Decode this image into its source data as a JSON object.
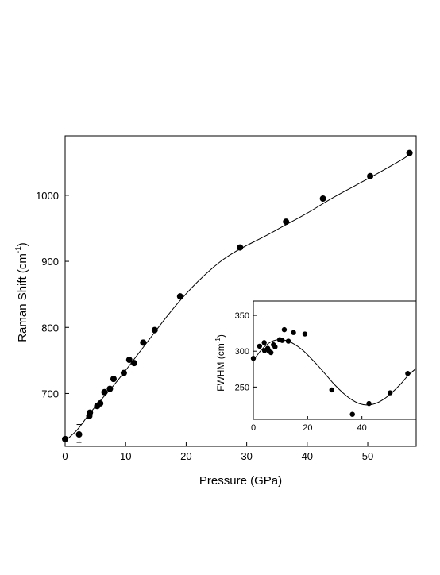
{
  "chart_data": [
    {
      "type": "scatter",
      "title": "",
      "xlabel": "Pressure (GPa)",
      "ylabel": "Raman Shift (cm",
      "ylabel_sup": "-1",
      "ylabel_close": ")",
      "xlim": [
        0,
        58
      ],
      "ylim": [
        620,
        1090
      ],
      "xticks": [
        0,
        10,
        20,
        30,
        40,
        50
      ],
      "yticks": [
        700,
        800,
        900,
        1000
      ],
      "xtick_labels": [
        "0",
        "10",
        "20",
        "30",
        "40",
        "50"
      ],
      "ytick_labels": [
        "700",
        "800",
        "900",
        "1000"
      ],
      "grid": false,
      "series": [
        {
          "x": [
            0,
            2.3,
            4.0,
            4.1,
            5.3,
            5.8,
            6.5,
            7.4,
            8.0,
            9.7,
            10.6,
            11.4,
            12.9,
            14.8,
            19.0,
            28.9,
            36.5,
            42.6,
            50.4,
            56.9
          ],
          "y": [
            631,
            638,
            666,
            671,
            681,
            685,
            702,
            707,
            722,
            731,
            751,
            746,
            777,
            796,
            847,
            921,
            960,
            995,
            1029,
            1064
          ],
          "error_bars": [
            {
              "x": 2.3,
              "low": 626,
              "high": 653
            }
          ]
        }
      ],
      "fit_curve": {
        "x": [
          0,
          2,
          4,
          6,
          8,
          10,
          12,
          14,
          16,
          18,
          20,
          22,
          24,
          26,
          28,
          30,
          33,
          36,
          40,
          44,
          48,
          52,
          56,
          57
        ],
        "y": [
          628,
          645,
          669,
          691,
          712,
          735,
          759,
          783,
          807,
          830,
          851,
          870,
          887,
          902,
          914,
          924,
          938,
          953,
          973,
          995,
          1015,
          1035,
          1056,
          1063
        ]
      }
    },
    {
      "type": "scatter",
      "title": "",
      "xlabel": "",
      "ylabel": "FWHM (cm",
      "ylabel_sup": "-1",
      "ylabel_close": ")",
      "xlim": [
        0,
        60
      ],
      "ylim": [
        205,
        370
      ],
      "xticks": [
        0,
        20,
        40
      ],
      "yticks": [
        250,
        300,
        350
      ],
      "xtick_labels": [
        "0",
        "20",
        "40"
      ],
      "ytick_labels": [
        "250",
        "300",
        "350"
      ],
      "grid": false,
      "series": [
        {
          "x": [
            0,
            2.3,
            4.0,
            4.1,
            5.3,
            5.8,
            6.5,
            7.4,
            8.0,
            9.7,
            10.6,
            11.4,
            12.9,
            14.8,
            19.0,
            28.9,
            36.5,
            42.6,
            50.4,
            56.9
          ],
          "y": [
            290,
            307,
            312,
            301,
            304,
            300,
            298,
            309,
            306,
            316,
            315,
            330,
            314,
            326,
            324,
            246,
            212,
            227,
            242,
            269
          ]
        }
      ],
      "fit_curve": {
        "x": [
          0,
          3,
          6,
          9,
          12,
          15,
          18,
          21,
          24,
          27,
          30,
          33,
          36,
          39,
          42,
          45,
          48,
          51,
          54,
          57,
          60
        ],
        "y": [
          287,
          302,
          312,
          316,
          315,
          310,
          302,
          291,
          279,
          266,
          253,
          242,
          233,
          227,
          225,
          227,
          233,
          242,
          253,
          266,
          276
        ]
      }
    }
  ]
}
